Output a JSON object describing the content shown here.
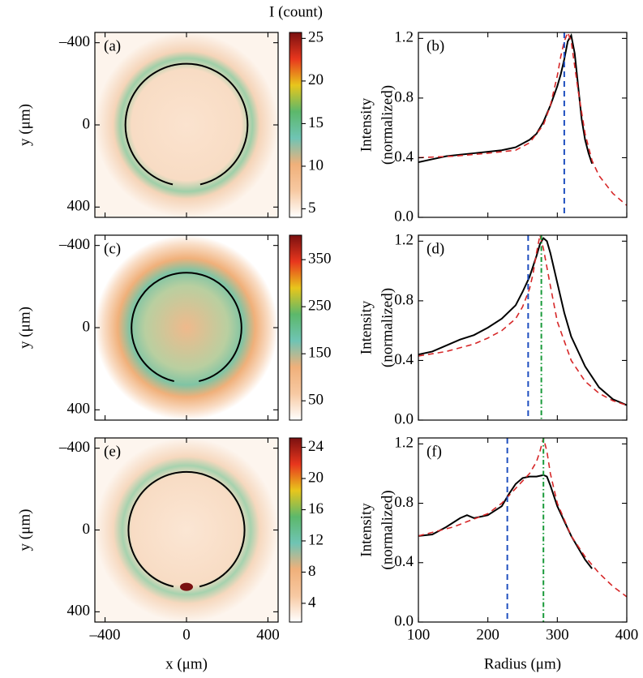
{
  "chart_data": [
    {
      "type": "image",
      "panel": "(a)",
      "xlim": [
        -450,
        450
      ],
      "ylim": [
        450,
        -450
      ],
      "xticks": [
        -400,
        0,
        400
      ],
      "yticks": [
        {
          "value": -400,
          "label": "–400"
        },
        0,
        400
      ],
      "ylabel": "y (μm)",
      "colormap": [
        "#ffffff",
        "#f7c9a2",
        "#f0b07a",
        "#6fc4b4",
        "#5cb86b",
        "#e8c61c",
        "#e8361d",
        "#7a1010"
      ],
      "clim": [
        4,
        25.7
      ],
      "cticks": [
        5,
        10,
        15,
        20,
        25
      ],
      "colorbar_label": "I (count)"
    },
    {
      "type": "line",
      "panel": "(b)",
      "xlim": [
        100,
        400
      ],
      "ylim": [
        0,
        1.24
      ],
      "xticks": [
        100,
        200,
        300,
        400
      ],
      "yticks": [
        {
          "value": 0,
          "label": "0.0"
        },
        0.4,
        0.8,
        1.2
      ],
      "ylabel": [
        "Intensity",
        "(normalized)"
      ],
      "series": [
        {
          "color": "#000000",
          "dash": "solid",
          "x": [
            100,
            120,
            140,
            160,
            180,
            200,
            220,
            240,
            260,
            270,
            280,
            290,
            300,
            305,
            310,
            315,
            320,
            325,
            330,
            335,
            340,
            345,
            350
          ],
          "values": [
            0.37,
            0.39,
            0.41,
            0.42,
            0.43,
            0.44,
            0.45,
            0.47,
            0.52,
            0.56,
            0.64,
            0.75,
            0.88,
            0.96,
            1.06,
            1.18,
            1.22,
            1.1,
            0.88,
            0.66,
            0.52,
            0.43,
            0.36
          ]
        },
        {
          "color": "#d62728",
          "dash": "dashed",
          "x": [
            100,
            150,
            200,
            240,
            260,
            280,
            290,
            300,
            305,
            310,
            315,
            320,
            330,
            340,
            350,
            360,
            380,
            400
          ],
          "values": [
            0.4,
            0.41,
            0.43,
            0.45,
            0.5,
            0.62,
            0.75,
            0.95,
            1.08,
            1.18,
            1.24,
            1.18,
            0.85,
            0.56,
            0.38,
            0.28,
            0.16,
            0.08
          ]
        }
      ],
      "vlines": [
        {
          "x": 310,
          "color": "#1f4fbf",
          "dash": "dashed"
        }
      ]
    },
    {
      "type": "image",
      "panel": "(c)",
      "xlim": [
        -450,
        450
      ],
      "ylim": [
        450,
        -450
      ],
      "xticks": [
        -400,
        0,
        400
      ],
      "yticks": [
        {
          "value": -400,
          "label": "–400"
        },
        0,
        400
      ],
      "ylabel": "y (μm)",
      "colormap": [
        "#ffffff",
        "#f7c9a2",
        "#f0b07a",
        "#6fc4b4",
        "#5cb86b",
        "#e8c61c",
        "#e8361d",
        "#7a1010"
      ],
      "clim": [
        9,
        402
      ],
      "cticks": [
        50,
        150,
        250,
        350
      ]
    },
    {
      "type": "line",
      "panel": "(d)",
      "xlim": [
        100,
        400
      ],
      "ylim": [
        0,
        1.24
      ],
      "xticks": [
        100,
        200,
        300,
        400
      ],
      "yticks": [
        {
          "value": 0,
          "label": "0.0"
        },
        0.4,
        0.8,
        1.2
      ],
      "ylabel": [
        "Intensity",
        "(normalized)"
      ],
      "series": [
        {
          "color": "#000000",
          "dash": "solid",
          "x": [
            100,
            120,
            140,
            160,
            180,
            200,
            220,
            240,
            250,
            260,
            270,
            275,
            280,
            285,
            290,
            300,
            310,
            320,
            340,
            360,
            380,
            400
          ],
          "values": [
            0.44,
            0.46,
            0.5,
            0.54,
            0.57,
            0.62,
            0.68,
            0.77,
            0.86,
            0.96,
            1.1,
            1.18,
            1.22,
            1.2,
            1.12,
            0.92,
            0.72,
            0.56,
            0.36,
            0.22,
            0.14,
            0.1
          ]
        },
        {
          "color": "#d62728",
          "dash": "dashed",
          "x": [
            100,
            140,
            180,
            200,
            220,
            240,
            250,
            260,
            265,
            270,
            275,
            280,
            290,
            300,
            320,
            340,
            360,
            380,
            400
          ],
          "values": [
            0.43,
            0.46,
            0.51,
            0.55,
            0.6,
            0.68,
            0.76,
            0.88,
            0.98,
            1.12,
            1.24,
            1.15,
            0.9,
            0.66,
            0.4,
            0.26,
            0.18,
            0.13,
            0.1
          ]
        }
      ],
      "vlines": [
        {
          "x": 258,
          "color": "#1f4fbf",
          "dash": "dashed"
        },
        {
          "x": 277,
          "color": "#1a9a3a",
          "dash": "dashdot"
        }
      ]
    },
    {
      "type": "image",
      "panel": "(e)",
      "xlim": [
        -450,
        450
      ],
      "ylim": [
        450,
        -450
      ],
      "xticks": [
        {
          "value": -400,
          "label": "–400"
        },
        0,
        400
      ],
      "yticks": [
        {
          "value": -400,
          "label": "–400"
        },
        0,
        400
      ],
      "ylabel": "y (μm)",
      "xlabel": "x (μm)",
      "colormap": [
        "#ffffff",
        "#f7c9a2",
        "#f0b07a",
        "#6fc4b4",
        "#5cb86b",
        "#e8c61c",
        "#e8361d",
        "#7a1010"
      ],
      "clim": [
        1.6,
        25.2
      ],
      "cticks": [
        4,
        8,
        12,
        16,
        20,
        24
      ]
    },
    {
      "type": "line",
      "panel": "(f)",
      "xlim": [
        100,
        400
      ],
      "ylim": [
        0,
        1.24
      ],
      "xticks": [
        100,
        200,
        300,
        400
      ],
      "yticks": [
        {
          "value": 0,
          "label": "0.0"
        },
        0.4,
        0.8,
        1.2
      ],
      "ylabel": [
        "Intensity",
        "(normalized)"
      ],
      "xlabel": "Radius (μm)",
      "series": [
        {
          "color": "#000000",
          "dash": "solid",
          "x": [
            100,
            120,
            140,
            160,
            170,
            180,
            200,
            220,
            230,
            240,
            250,
            260,
            270,
            280,
            285,
            290,
            300,
            310,
            320,
            330,
            340,
            350
          ],
          "values": [
            0.58,
            0.59,
            0.64,
            0.7,
            0.72,
            0.7,
            0.72,
            0.78,
            0.86,
            0.93,
            0.97,
            0.98,
            0.98,
            0.99,
            0.98,
            0.92,
            0.78,
            0.68,
            0.58,
            0.5,
            0.42,
            0.36
          ]
        },
        {
          "color": "#d62728",
          "dash": "dashed",
          "x": [
            100,
            150,
            200,
            220,
            240,
            260,
            270,
            275,
            280,
            285,
            290,
            300,
            320,
            340,
            360,
            380,
            400
          ],
          "values": [
            0.58,
            0.64,
            0.73,
            0.8,
            0.9,
            1.0,
            1.08,
            1.15,
            1.24,
            1.15,
            1.0,
            0.8,
            0.58,
            0.44,
            0.33,
            0.24,
            0.17
          ]
        }
      ],
      "vlines": [
        {
          "x": 228,
          "color": "#1f4fbf",
          "dash": "dashed"
        },
        {
          "x": 280,
          "color": "#1a9a3a",
          "dash": "dashdot"
        }
      ]
    }
  ]
}
